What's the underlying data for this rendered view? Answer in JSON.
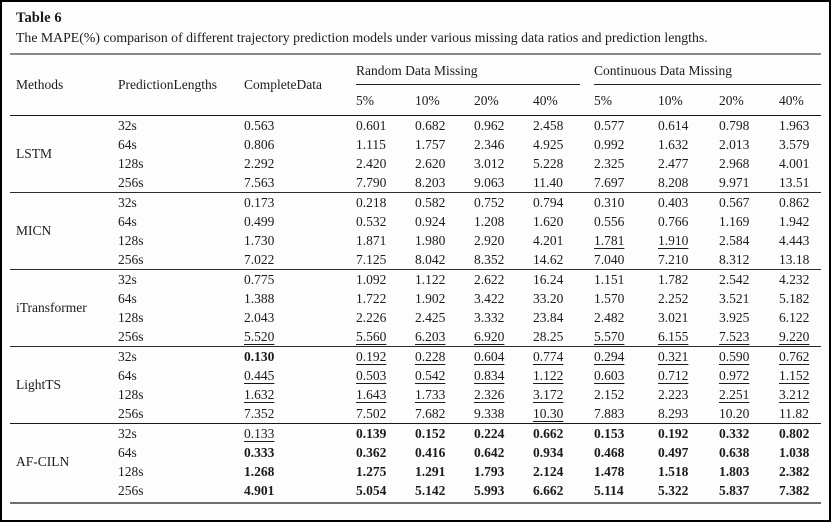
{
  "title": "Table 6",
  "caption": "The MAPE(%) comparison of different trajectory prediction models under various missing data ratios and prediction lengths.",
  "header": {
    "methods": "Methods",
    "prediction_lengths": "PredictionLengths",
    "complete_data": "CompleteData",
    "random_group": "Random Data Missing",
    "continuous_group": "Continuous Data Missing",
    "ratios": [
      "5%",
      "10%",
      "20%",
      "40%"
    ]
  },
  "table": {
    "groups": [
      {
        "method": "LSTM",
        "rows": [
          {
            "length": "32s",
            "values": [
              "0.563",
              "0.601",
              "0.682",
              "0.962",
              "2.458",
              "0.577",
              "0.614",
              "0.798",
              "1.963"
            ],
            "styles": [
              "",
              "",
              "",
              "",
              "",
              "",
              "",
              "",
              ""
            ]
          },
          {
            "length": "64s",
            "values": [
              "0.806",
              "1.115",
              "1.757",
              "2.346",
              "4.925",
              "0.992",
              "1.632",
              "2.013",
              "3.579"
            ],
            "styles": [
              "",
              "",
              "",
              "",
              "",
              "",
              "",
              "",
              ""
            ]
          },
          {
            "length": "128s",
            "values": [
              "2.292",
              "2.420",
              "2.620",
              "3.012",
              "5.228",
              "2.325",
              "2.477",
              "2.968",
              "4.001"
            ],
            "styles": [
              "",
              "",
              "",
              "",
              "",
              "",
              "",
              "",
              ""
            ]
          },
          {
            "length": "256s",
            "values": [
              "7.563",
              "7.790",
              "8.203",
              "9.063",
              "11.40",
              "7.697",
              "8.208",
              "9.971",
              "13.51"
            ],
            "styles": [
              "",
              "",
              "",
              "",
              "",
              "",
              "",
              "",
              ""
            ]
          }
        ]
      },
      {
        "method": "MICN",
        "rows": [
          {
            "length": "32s",
            "values": [
              "0.173",
              "0.218",
              "0.582",
              "0.752",
              "0.794",
              "0.310",
              "0.403",
              "0.567",
              "0.862"
            ],
            "styles": [
              "",
              "",
              "",
              "",
              "",
              "",
              "",
              "",
              ""
            ]
          },
          {
            "length": "64s",
            "values": [
              "0.499",
              "0.532",
              "0.924",
              "1.208",
              "1.620",
              "0.556",
              "0.766",
              "1.169",
              "1.942"
            ],
            "styles": [
              "",
              "",
              "",
              "",
              "",
              "",
              "",
              "",
              ""
            ]
          },
          {
            "length": "128s",
            "values": [
              "1.730",
              "1.871",
              "1.980",
              "2.920",
              "4.201",
              "1.781",
              "1.910",
              "2.584",
              "4.443"
            ],
            "styles": [
              "",
              "",
              "",
              "",
              "",
              "u",
              "u",
              "",
              ""
            ]
          },
          {
            "length": "256s",
            "values": [
              "7.022",
              "7.125",
              "8.042",
              "8.352",
              "14.62",
              "7.040",
              "7.210",
              "8.312",
              "13.18"
            ],
            "styles": [
              "",
              "",
              "",
              "",
              "",
              "",
              "",
              "",
              ""
            ]
          }
        ]
      },
      {
        "method": "iTransformer",
        "rows": [
          {
            "length": "32s",
            "values": [
              "0.775",
              "1.092",
              "1.122",
              "2.622",
              "16.24",
              "1.151",
              "1.782",
              "2.542",
              "4.232"
            ],
            "styles": [
              "",
              "",
              "",
              "",
              "",
              "",
              "",
              "",
              ""
            ]
          },
          {
            "length": "64s",
            "values": [
              "1.388",
              "1.722",
              "1.902",
              "3.422",
              "33.20",
              "1.570",
              "2.252",
              "3.521",
              "5.182"
            ],
            "styles": [
              "",
              "",
              "",
              "",
              "",
              "",
              "",
              "",
              ""
            ]
          },
          {
            "length": "128s",
            "values": [
              "2.043",
              "2.226",
              "2.425",
              "3.332",
              "23.84",
              "2.482",
              "3.021",
              "3.925",
              "6.122"
            ],
            "styles": [
              "",
              "",
              "",
              "",
              "",
              "",
              "",
              "",
              ""
            ]
          },
          {
            "length": "256s",
            "values": [
              "5.520",
              "5.560",
              "6.203",
              "6.920",
              "28.25",
              "5.570",
              "6.155",
              "7.523",
              "9.220"
            ],
            "styles": [
              "u",
              "u",
              "u",
              "u",
              "",
              "u",
              "u",
              "u",
              "u"
            ]
          }
        ]
      },
      {
        "method": "LightTS",
        "rows": [
          {
            "length": "32s",
            "values": [
              "0.130",
              "0.192",
              "0.228",
              "0.604",
              "0.774",
              "0.294",
              "0.321",
              "0.590",
              "0.762"
            ],
            "styles": [
              "b",
              "u",
              "u",
              "u",
              "u",
              "u",
              "u",
              "u",
              "u"
            ]
          },
          {
            "length": "64s",
            "values": [
              "0.445",
              "0.503",
              "0.542",
              "0.834",
              "1.122",
              "0.603",
              "0.712",
              "0.972",
              "1.152"
            ],
            "styles": [
              "u",
              "u",
              "u",
              "u",
              "u",
              "u",
              "u",
              "u",
              "u"
            ]
          },
          {
            "length": "128s",
            "values": [
              "1.632",
              "1.643",
              "1.733",
              "2.326",
              "3.172",
              "2.152",
              "2.223",
              "2.251",
              "3.212"
            ],
            "styles": [
              "u",
              "u",
              "u",
              "u",
              "u",
              "",
              "",
              "u",
              "u"
            ]
          },
          {
            "length": "256s",
            "values": [
              "7.352",
              "7.502",
              "7.682",
              "9.338",
              "10.30",
              "7.883",
              "8.293",
              "10.20",
              "11.82"
            ],
            "styles": [
              "",
              "",
              "",
              "",
              "u",
              "",
              "",
              "",
              ""
            ]
          }
        ]
      },
      {
        "method": "AF-CILN",
        "rows": [
          {
            "length": "32s",
            "values": [
              "0.133",
              "0.139",
              "0.152",
              "0.224",
              "0.662",
              "0.153",
              "0.192",
              "0.332",
              "0.802"
            ],
            "styles": [
              "u",
              "b",
              "b",
              "b",
              "b",
              "b",
              "b",
              "b",
              "b"
            ]
          },
          {
            "length": "64s",
            "values": [
              "0.333",
              "0.362",
              "0.416",
              "0.642",
              "0.934",
              "0.468",
              "0.497",
              "0.638",
              "1.038"
            ],
            "styles": [
              "b",
              "b",
              "b",
              "b",
              "b",
              "b",
              "b",
              "b",
              "b"
            ]
          },
          {
            "length": "128s",
            "values": [
              "1.268",
              "1.275",
              "1.291",
              "1.793",
              "2.124",
              "1.478",
              "1.518",
              "1.803",
              "2.382"
            ],
            "styles": [
              "b",
              "b",
              "b",
              "b",
              "b",
              "b",
              "b",
              "b",
              "b"
            ]
          },
          {
            "length": "256s",
            "values": [
              "4.901",
              "5.054",
              "5.142",
              "5.993",
              "6.662",
              "5.114",
              "5.322",
              "5.837",
              "7.382"
            ],
            "styles": [
              "b",
              "b",
              "b",
              "b",
              "b",
              "b",
              "b",
              "b",
              "b"
            ]
          }
        ]
      }
    ]
  }
}
